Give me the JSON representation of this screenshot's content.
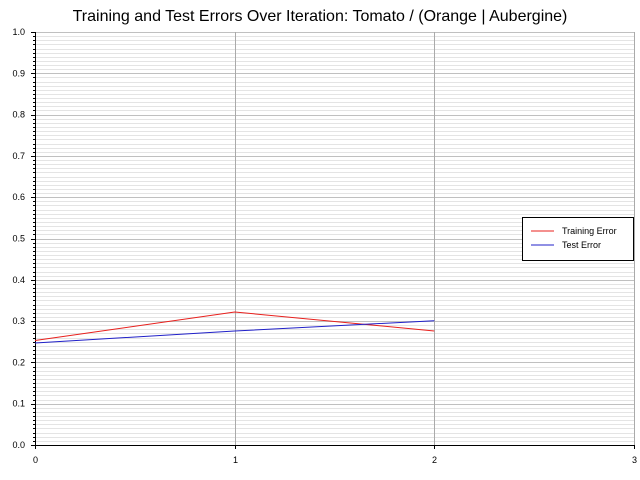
{
  "chart_data": {
    "type": "line",
    "title": "Training and Test Errors Over Iteration: Tomato / (Orange | Aubergine)",
    "xlabel": "",
    "ylabel": "",
    "xlim": [
      0,
      3
    ],
    "ylim": [
      0.0,
      1.0
    ],
    "x_ticks": [
      "0",
      "1",
      "2",
      "3"
    ],
    "y_ticks": [
      "0.0",
      "0.1",
      "0.2",
      "0.3",
      "0.4",
      "0.5",
      "0.6",
      "0.7",
      "0.8",
      "0.9",
      "1.0"
    ],
    "grid": true,
    "legend_position": "right",
    "series": [
      {
        "name": "Training Error",
        "color": "#e8201d",
        "x": [
          0,
          1,
          2
        ],
        "y": [
          0.253,
          0.322,
          0.276
        ]
      },
      {
        "name": "Test Error",
        "color": "#2020c8",
        "x": [
          0,
          1,
          2
        ],
        "y": [
          0.247,
          0.276,
          0.301
        ]
      }
    ]
  }
}
